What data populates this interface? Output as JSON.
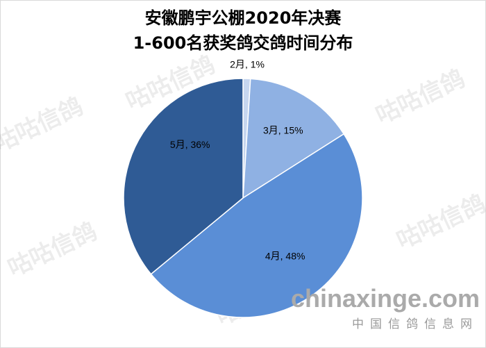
{
  "chart_data": {
    "type": "pie",
    "title": [
      "安徽鹏宇公棚2020年决赛",
      "1-600名获奖鸽交鸽时间分布"
    ],
    "categories": [
      "2月",
      "3月",
      "4月",
      "5月"
    ],
    "values": [
      1,
      15,
      48,
      36
    ],
    "value_labels": [
      "1%",
      "15%",
      "48%",
      "36%"
    ],
    "colors": [
      "#c6d6ef",
      "#8fb1e3",
      "#5a8ed6",
      "#2f5b95"
    ]
  },
  "watermarks": {
    "brand": "咕咕信鸽",
    "site": "chinaxinge.com",
    "site_name": "中国信鸽信息网"
  }
}
